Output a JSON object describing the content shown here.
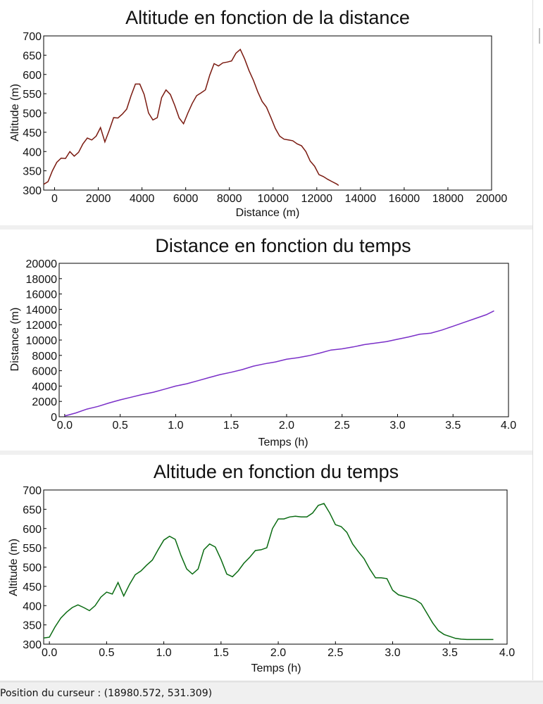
{
  "status_bar": {
    "cursor_label": "Position du curseur : (18980.572, 531.309)"
  },
  "chart_data": [
    {
      "type": "line",
      "title": "Altitude en fonction de la distance",
      "xlabel": "Distance (m)",
      "ylabel": "Altitude (m)",
      "xlim": [
        -500,
        20000
      ],
      "ylim": [
        300,
        700
      ],
      "xticks": [
        0,
        2000,
        4000,
        6000,
        8000,
        10000,
        12000,
        14000,
        16000,
        18000,
        20000
      ],
      "yticks": [
        300,
        350,
        400,
        450,
        500,
        550,
        600,
        650,
        700
      ],
      "grid": false,
      "color": "#7a1a10",
      "series": [
        {
          "x": [
            -500,
            -300,
            -100,
            100,
            300,
            500,
            700,
            900,
            1100,
            1300,
            1500,
            1700,
            1900,
            2100,
            2300,
            2500,
            2700,
            2900,
            3100,
            3300,
            3500,
            3700,
            3900,
            4100,
            4300,
            4500,
            4700,
            4900,
            5100,
            5300,
            5500,
            5700,
            5900,
            6100,
            6300,
            6500,
            6700,
            6900,
            7100,
            7300,
            7500,
            7700,
            7900,
            8100,
            8300,
            8500,
            8700,
            8900,
            9100,
            9300,
            9500,
            9700,
            9900,
            10100,
            10300,
            10500,
            10700,
            10900,
            11100,
            11300,
            11500,
            11700,
            11900,
            12100,
            12300,
            12500,
            12700,
            12900,
            13000
          ],
          "y": [
            315,
            322,
            350,
            372,
            383,
            382,
            400,
            388,
            398,
            420,
            435,
            430,
            440,
            462,
            425,
            455,
            488,
            487,
            497,
            510,
            545,
            575,
            575,
            548,
            500,
            482,
            488,
            540,
            560,
            548,
            520,
            487,
            472,
            500,
            525,
            545,
            552,
            560,
            598,
            628,
            622,
            630,
            632,
            635,
            655,
            665,
            640,
            610,
            585,
            555,
            530,
            515,
            488,
            460,
            440,
            432,
            430,
            428,
            420,
            415,
            400,
            375,
            362,
            340,
            335,
            328,
            322,
            316,
            312
          ]
        }
      ]
    },
    {
      "type": "line",
      "title": "Distance en fonction du temps",
      "xlabel": "Temps (h)",
      "ylabel": "Distance (m)",
      "xlim": [
        -0.05,
        4.0
      ],
      "ylim": [
        0,
        20000
      ],
      "xticks": [
        0.0,
        0.5,
        1.0,
        1.5,
        2.0,
        2.5,
        3.0,
        3.5,
        4.0
      ],
      "yticks": [
        0,
        2000,
        4000,
        6000,
        8000,
        10000,
        12000,
        14000,
        16000,
        18000,
        20000
      ],
      "grid": false,
      "color": "#7a2fc8",
      "series": [
        {
          "x": [
            0.0,
            0.1,
            0.2,
            0.3,
            0.4,
            0.5,
            0.6,
            0.7,
            0.8,
            0.9,
            1.0,
            1.1,
            1.2,
            1.3,
            1.4,
            1.5,
            1.6,
            1.7,
            1.8,
            1.9,
            2.0,
            2.1,
            2.2,
            2.3,
            2.4,
            2.5,
            2.6,
            2.7,
            2.8,
            2.9,
            3.0,
            3.1,
            3.2,
            3.3,
            3.4,
            3.5,
            3.6,
            3.7,
            3.8,
            3.87
          ],
          "y": [
            100,
            500,
            1000,
            1350,
            1800,
            2200,
            2550,
            2900,
            3200,
            3600,
            4000,
            4300,
            4700,
            5100,
            5500,
            5800,
            6150,
            6600,
            6900,
            7150,
            7500,
            7700,
            7950,
            8300,
            8700,
            8850,
            9100,
            9400,
            9600,
            9800,
            10100,
            10400,
            10750,
            10900,
            11300,
            11800,
            12300,
            12800,
            13300,
            13800
          ]
        }
      ]
    },
    {
      "type": "line",
      "title": "Altitude en fonction du temps",
      "xlabel": "Temps (h)",
      "ylabel": "Altitude (m)",
      "xlim": [
        -0.05,
        4.0
      ],
      "ylim": [
        300,
        700
      ],
      "xticks": [
        0.0,
        0.5,
        1.0,
        1.5,
        2.0,
        2.5,
        3.0,
        3.5,
        4.0
      ],
      "yticks": [
        300,
        350,
        400,
        450,
        500,
        550,
        600,
        650,
        700
      ],
      "grid": false,
      "color": "#0a6b12",
      "series": [
        {
          "x": [
            -0.05,
            0.0,
            0.05,
            0.1,
            0.15,
            0.2,
            0.25,
            0.3,
            0.35,
            0.4,
            0.45,
            0.5,
            0.55,
            0.6,
            0.65,
            0.7,
            0.75,
            0.8,
            0.85,
            0.9,
            0.95,
            1.0,
            1.05,
            1.1,
            1.15,
            1.2,
            1.25,
            1.3,
            1.35,
            1.4,
            1.45,
            1.5,
            1.55,
            1.6,
            1.65,
            1.7,
            1.75,
            1.8,
            1.85,
            1.9,
            1.95,
            2.0,
            2.05,
            2.1,
            2.15,
            2.2,
            2.25,
            2.3,
            2.35,
            2.4,
            2.45,
            2.5,
            2.55,
            2.6,
            2.65,
            2.7,
            2.75,
            2.8,
            2.85,
            2.9,
            2.95,
            3.0,
            3.05,
            3.1,
            3.15,
            3.2,
            3.25,
            3.3,
            3.35,
            3.4,
            3.45,
            3.5,
            3.55,
            3.6,
            3.65,
            3.7,
            3.75,
            3.8,
            3.85,
            3.88
          ],
          "y": [
            316,
            318,
            345,
            368,
            383,
            395,
            402,
            395,
            387,
            400,
            422,
            435,
            430,
            460,
            425,
            455,
            480,
            490,
            505,
            518,
            545,
            570,
            580,
            572,
            530,
            495,
            482,
            495,
            545,
            560,
            552,
            520,
            482,
            475,
            490,
            510,
            525,
            543,
            545,
            550,
            600,
            625,
            625,
            630,
            632,
            630,
            630,
            640,
            660,
            665,
            640,
            610,
            605,
            590,
            560,
            540,
            522,
            495,
            472,
            472,
            470,
            440,
            428,
            424,
            420,
            415,
            405,
            380,
            355,
            335,
            325,
            320,
            315,
            313,
            312,
            312,
            312,
            312,
            312,
            312
          ]
        }
      ]
    }
  ]
}
